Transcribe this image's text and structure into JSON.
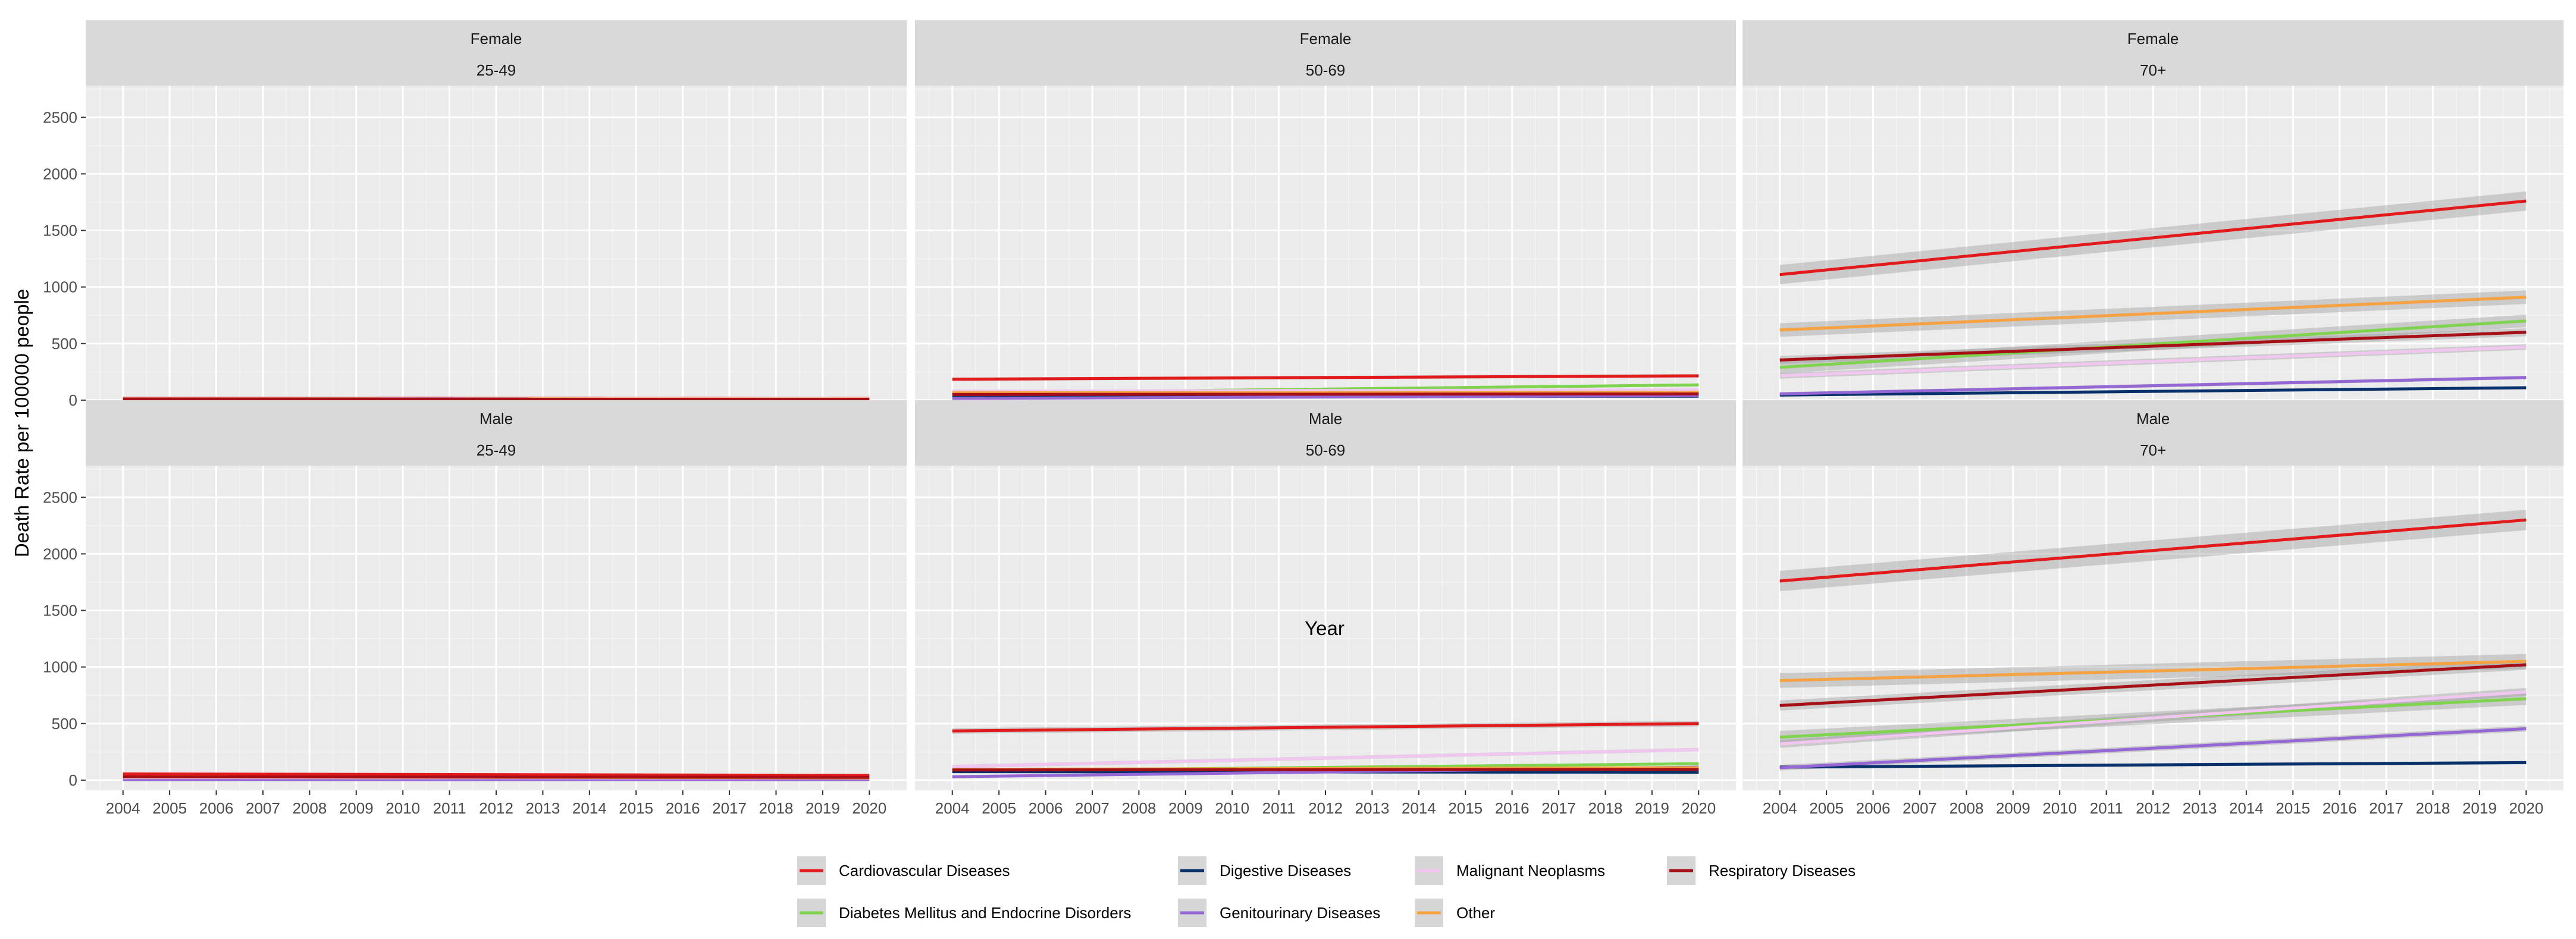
{
  "chart_data": {
    "type": "line",
    "layout": "facet_grid",
    "xlabel": "Year",
    "ylabel": "Death Rate per 100000 people",
    "x": [
      2004,
      2005,
      2006,
      2007,
      2008,
      2009,
      2010,
      2011,
      2012,
      2013,
      2014,
      2015,
      2016,
      2017,
      2018,
      2019,
      2020
    ],
    "x_ticks": [
      "2004",
      "2005",
      "2006",
      "2007",
      "2008",
      "2009",
      "2010",
      "2011",
      "2012",
      "2013",
      "2014",
      "2015",
      "2016",
      "2017",
      "2018",
      "2019",
      "2020"
    ],
    "y_ticks": [
      "0",
      "500",
      "1000",
      "1500",
      "2000",
      "2500"
    ],
    "ylim": [
      -90,
      2780
    ],
    "xlim": [
      2003.2,
      2020.8
    ],
    "grid": true,
    "legend_position": "bottom",
    "series_order": [
      "Cardiovascular Diseases",
      "Diabetes Mellitus and Endocrine Disorders",
      "Digestive Diseases",
      "Genitourinary Diseases",
      "Malignant Neoplasms",
      "Other",
      "Respiratory Diseases"
    ],
    "series_colors": {
      "Cardiovascular Diseases": "#e31a1c",
      "Diabetes Mellitus and Endocrine Disorders": "#7fd34e",
      "Digestive Diseases": "#08306b",
      "Genitourinary Diseases": "#9467d4",
      "Malignant Neoplasms": "#f1c6f1",
      "Other": "#f5a243",
      "Respiratory Diseases": "#a50f15"
    },
    "panels": [
      {
        "sex": "Female",
        "age": "25-49",
        "series": [
          {
            "name": "Cardiovascular Diseases",
            "start": 18,
            "end": 15,
            "band": 4
          },
          {
            "name": "Diabetes Mellitus and Endocrine Disorders",
            "start": 5,
            "end": 5,
            "band": 2
          },
          {
            "name": "Digestive Diseases",
            "start": 6,
            "end": 5,
            "band": 2
          },
          {
            "name": "Genitourinary Diseases",
            "start": 3,
            "end": 3,
            "band": 2
          },
          {
            "name": "Malignant Neoplasms",
            "start": 15,
            "end": 14,
            "band": 3
          },
          {
            "name": "Other",
            "start": 12,
            "end": 10,
            "band": 3
          },
          {
            "name": "Respiratory Diseases",
            "start": 10,
            "end": 9,
            "band": 3
          }
        ]
      },
      {
        "sex": "Female",
        "age": "50-69",
        "series": [
          {
            "name": "Cardiovascular Diseases",
            "start": 185,
            "end": 215,
            "band": 15
          },
          {
            "name": "Diabetes Mellitus and Endocrine Disorders",
            "start": 60,
            "end": 135,
            "band": 12
          },
          {
            "name": "Digestive Diseases",
            "start": 30,
            "end": 35,
            "band": 6
          },
          {
            "name": "Genitourinary Diseases",
            "start": 15,
            "end": 40,
            "band": 6
          },
          {
            "name": "Malignant Neoplasms",
            "start": 80,
            "end": 90,
            "band": 10
          },
          {
            "name": "Other",
            "start": 65,
            "end": 70,
            "band": 8
          },
          {
            "name": "Respiratory Diseases",
            "start": 50,
            "end": 55,
            "band": 8
          }
        ]
      },
      {
        "sex": "Female",
        "age": "70+",
        "series": [
          {
            "name": "Cardiovascular Diseases",
            "start": 1110,
            "end": 1760,
            "band": 85
          },
          {
            "name": "Diabetes Mellitus and Endocrine Disorders",
            "start": 290,
            "end": 700,
            "band": 55
          },
          {
            "name": "Digestive Diseases",
            "start": 45,
            "end": 110,
            "band": 12
          },
          {
            "name": "Genitourinary Diseases",
            "start": 55,
            "end": 200,
            "band": 15
          },
          {
            "name": "Malignant Neoplasms",
            "start": 215,
            "end": 470,
            "band": 25
          },
          {
            "name": "Other",
            "start": 620,
            "end": 910,
            "band": 60
          },
          {
            "name": "Respiratory Diseases",
            "start": 355,
            "end": 600,
            "band": 35
          }
        ]
      },
      {
        "sex": "Male",
        "age": "25-49",
        "series": [
          {
            "name": "Cardiovascular Diseases",
            "start": 55,
            "end": 42,
            "band": 8
          },
          {
            "name": "Diabetes Mellitus and Endocrine Disorders",
            "start": 14,
            "end": 12,
            "band": 3
          },
          {
            "name": "Digestive Diseases",
            "start": 15,
            "end": 12,
            "band": 3
          },
          {
            "name": "Genitourinary Diseases",
            "start": 5,
            "end": 5,
            "band": 2
          },
          {
            "name": "Malignant Neoplasms",
            "start": 22,
            "end": 20,
            "band": 4
          },
          {
            "name": "Other",
            "start": 30,
            "end": 20,
            "band": 5
          },
          {
            "name": "Respiratory Diseases",
            "start": 30,
            "end": 25,
            "band": 5
          }
        ]
      },
      {
        "sex": "Male",
        "age": "50-69",
        "series": [
          {
            "name": "Cardiovascular Diseases",
            "start": 435,
            "end": 500,
            "band": 25
          },
          {
            "name": "Diabetes Mellitus and Endocrine Disorders",
            "start": 80,
            "end": 145,
            "band": 12
          },
          {
            "name": "Digestive Diseases",
            "start": 75,
            "end": 70,
            "band": 8
          },
          {
            "name": "Genitourinary Diseases",
            "start": 30,
            "end": 115,
            "band": 10
          },
          {
            "name": "Malignant Neoplasms",
            "start": 120,
            "end": 270,
            "band": 15
          },
          {
            "name": "Other",
            "start": 95,
            "end": 110,
            "band": 10
          },
          {
            "name": "Respiratory Diseases",
            "start": 90,
            "end": 95,
            "band": 10
          }
        ]
      },
      {
        "sex": "Male",
        "age": "70+",
        "series": [
          {
            "name": "Cardiovascular Diseases",
            "start": 1760,
            "end": 2300,
            "band": 90
          },
          {
            "name": "Diabetes Mellitus and Endocrine Disorders",
            "start": 380,
            "end": 720,
            "band": 55
          },
          {
            "name": "Digestive Diseases",
            "start": 115,
            "end": 155,
            "band": 15
          },
          {
            "name": "Genitourinary Diseases",
            "start": 110,
            "end": 455,
            "band": 25
          },
          {
            "name": "Malignant Neoplasms",
            "start": 320,
            "end": 780,
            "band": 35
          },
          {
            "name": "Other",
            "start": 880,
            "end": 1050,
            "band": 65
          },
          {
            "name": "Respiratory Diseases",
            "start": 660,
            "end": 1020,
            "band": 45
          }
        ]
      }
    ]
  }
}
